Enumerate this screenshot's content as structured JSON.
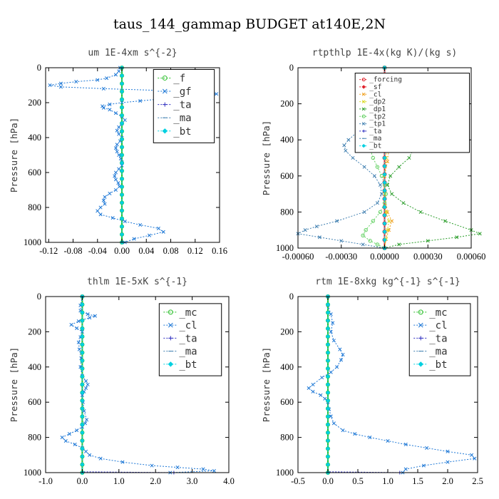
{
  "title": "taus_144_gammap  BUDGET at140E,2N",
  "colors": {
    "blue": "#1e78d6",
    "green": "#2bbf2b",
    "red": "#e0202a",
    "orange": "#f0a020",
    "yellow": "#d8d820",
    "purple": "#3030c0",
    "cyan": "#00d0e0",
    "dgreen": "#2a9d2a",
    "lgreen": "#60d060",
    "steel": "#3f7fb0"
  },
  "chart_data": [
    {
      "type": "line",
      "title": "um  1E-4xm s^{-2}",
      "ylabel": "Pressure [hPa]",
      "xlim": [
        -0.125,
        0.16
      ],
      "ylim": [
        1000,
        0
      ],
      "xticks": [
        -0.12,
        -0.08,
        -0.04,
        0.0,
        0.04,
        0.08,
        0.12,
        0.16
      ],
      "xtick_labels": [
        "-0.12",
        "-0.08",
        "-0.04",
        "0.00",
        "0.04",
        "0.08",
        "0.12",
        "0.16"
      ],
      "yticks": [
        0,
        200,
        400,
        600,
        800,
        1000
      ],
      "ytick_labels": [
        "0",
        "200",
        "400",
        "600",
        "800",
        "1000"
      ],
      "legend_position": "top-right",
      "legend_style": "big",
      "legend_box": [
        0.62,
        0.99,
        0.97,
        0.57
      ],
      "series": [
        {
          "name": "_f",
          "color": "#2bbf2b",
          "width": 2,
          "marker": "circle",
          "y": [
            0,
            1000
          ],
          "x": [
            0.0,
            0.0
          ]
        },
        {
          "name": "_gf",
          "color": "#1e78d6",
          "width": 1,
          "marker": "x",
          "y": [
            0,
            20,
            40,
            60,
            70,
            80,
            90,
            100,
            110,
            120,
            130,
            140,
            150,
            160,
            170,
            180,
            190,
            200,
            210,
            220,
            230,
            240,
            260,
            280,
            300,
            320,
            340,
            360,
            380,
            400,
            420,
            440,
            460,
            480,
            500,
            520,
            540,
            560,
            580,
            600,
            620,
            640,
            660,
            680,
            700,
            720,
            740,
            760,
            780,
            800,
            820,
            840,
            860,
            880,
            900,
            920,
            940,
            960,
            980,
            1000
          ],
          "x": [
            -0.003,
            -0.005,
            -0.01,
            -0.025,
            -0.04,
            -0.075,
            -0.1,
            -0.118,
            -0.1,
            -0.03,
            0.06,
            0.12,
            0.155,
            0.14,
            0.1,
            0.06,
            0.03,
            0.0,
            -0.02,
            -0.032,
            -0.03,
            -0.02,
            -0.01,
            0.0,
            0.005,
            0.0,
            -0.005,
            -0.008,
            -0.005,
            0.0,
            -0.003,
            -0.008,
            -0.01,
            -0.008,
            -0.005,
            -0.002,
            0.0,
            0.0,
            -0.005,
            -0.01,
            -0.012,
            -0.01,
            -0.006,
            -0.004,
            -0.01,
            -0.02,
            -0.028,
            -0.03,
            -0.028,
            -0.035,
            -0.04,
            -0.035,
            -0.015,
            0.005,
            0.03,
            0.06,
            0.068,
            0.045,
            0.02,
            0.005
          ]
        },
        {
          "name": "_ta",
          "color": "#3030c0",
          "width": 1,
          "marker": "plus",
          "y": [
            0,
            1000
          ],
          "x": [
            0.0,
            0.0
          ]
        },
        {
          "name": "_ma",
          "color": "#3f7fb0",
          "width": 1,
          "marker": "dash",
          "y": [
            0,
            1000
          ],
          "x": [
            0.0,
            0.0
          ]
        },
        {
          "name": "_bt",
          "color": "#00d0e0",
          "width": 1,
          "marker": "diamond",
          "y": [
            0,
            1000
          ],
          "x": [
            0.0,
            0.0
          ]
        }
      ]
    },
    {
      "type": "line",
      "title": "rtpthlp  1E-4x(kg K)/(kg s)",
      "ylabel": "Pressure [hPa]",
      "xlim": [
        -0.0006,
        0.0006
      ],
      "ylim": [
        1000,
        0
      ],
      "xticks": [
        -0.0006,
        -0.0003,
        0.0,
        0.0003,
        0.0006
      ],
      "xtick_labels": [
        "-0.00060",
        "-0.00030",
        "0.00000",
        "0.00030",
        "0.00060"
      ],
      "yticks": [
        0,
        200,
        400,
        600,
        800,
        1000
      ],
      "ytick_labels": [
        "0",
        "200",
        "400",
        "600",
        "800",
        "1000"
      ],
      "legend_position": "top-right",
      "legend_style": "small",
      "legend_box": [
        0.33,
        0.97,
        0.99,
        0.53
      ],
      "series": [
        {
          "name": "_forcing",
          "color": "#e0202a",
          "width": 2,
          "marker": "circle",
          "y": [
            0,
            1000
          ],
          "x": [
            0.0,
            0.0
          ]
        },
        {
          "name": "_sf",
          "color": "#e0202a",
          "width": 1,
          "marker": "diamond",
          "y": [
            0,
            1000
          ],
          "x": [
            0.0,
            0.0
          ]
        },
        {
          "name": "_cl",
          "color": "#f0a020",
          "width": 1,
          "marker": "x",
          "y": [
            0,
            200,
            300,
            380,
            450,
            520,
            600,
            700,
            800,
            850,
            900,
            950,
            1000
          ],
          "x": [
            0.0,
            0.0,
            1e-05,
            2e-05,
            3e-05,
            2e-05,
            0.0,
            0.0,
            2e-05,
            5e-05,
            3e-05,
            1e-05,
            0.0
          ]
        },
        {
          "name": "_dp2",
          "color": "#d8d820",
          "width": 1,
          "marker": "x",
          "y": [
            0,
            200,
            300,
            400,
            500,
            600,
            700,
            800,
            850,
            900,
            950,
            1000
          ],
          "x": [
            0.0,
            0.0,
            1e-05,
            2e-05,
            1e-05,
            0.0,
            0.0,
            1e-05,
            3e-05,
            2e-05,
            1e-05,
            0.0
          ]
        },
        {
          "name": "_dp1",
          "color": "#2a9d2a",
          "width": 1,
          "marker": "x",
          "y": [
            0,
            200,
            250,
            300,
            350,
            400,
            450,
            500,
            550,
            600,
            650,
            700,
            750,
            800,
            850,
            900,
            920,
            940,
            960,
            980,
            1000
          ],
          "x": [
            0.0,
            0.0,
            3e-05,
            8e-05,
            0.00014,
            0.00019,
            0.0002,
            0.00017,
            0.0001,
            4e-05,
            2e-05,
            5e-05,
            0.00013,
            0.00025,
            0.00042,
            0.0006,
            0.00066,
            0.0005,
            0.0003,
            0.0001,
            0.0
          ]
        },
        {
          "name": "_tp2",
          "color": "#60d060",
          "width": 1,
          "marker": "circle",
          "y": [
            0,
            200,
            250,
            300,
            350,
            400,
            450,
            500,
            550,
            600,
            650,
            700,
            750,
            800,
            850,
            900,
            930,
            960,
            980,
            1000
          ],
          "x": [
            0.0,
            0.0,
            -2e-05,
            -5e-05,
            -8e-05,
            -0.0001,
            -0.0001,
            -8e-05,
            -5e-05,
            -2e-05,
            0.0,
            1e-05,
            0.0,
            -3e-05,
            -8e-05,
            -0.00013,
            -0.00015,
            -0.0001,
            -5e-05,
            0.0
          ]
        },
        {
          "name": "_tp1",
          "color": "#3f7fb0",
          "width": 1,
          "marker": "x",
          "y": [
            0,
            200,
            250,
            300,
            350,
            400,
            430,
            460,
            500,
            550,
            600,
            650,
            700,
            750,
            800,
            850,
            880,
            900,
            920,
            940,
            960,
            980,
            1000
          ],
          "x": [
            0.0,
            0.0,
            -4e-05,
            -0.0001,
            -0.00018,
            -0.00025,
            -0.00028,
            -0.00027,
            -0.00022,
            -0.00014,
            -7e-05,
            -3e-05,
            -2e-05,
            -5e-05,
            -0.00014,
            -0.00033,
            -0.00047,
            -0.00055,
            -0.0006,
            -0.00045,
            -0.0003,
            -0.00015,
            0.0
          ]
        },
        {
          "name": "_ta",
          "color": "#3030c0",
          "width": 1,
          "marker": "plus",
          "y": [
            0,
            1000
          ],
          "x": [
            0.0,
            0.0
          ]
        },
        {
          "name": "_ma",
          "color": "#3f7fb0",
          "width": 1,
          "marker": "dash",
          "y": [
            0,
            1000
          ],
          "x": [
            0.0,
            0.0
          ]
        },
        {
          "name": "_bt",
          "color": "#00d0e0",
          "width": 1,
          "marker": "diamond",
          "y": [
            0,
            1000
          ],
          "x": [
            0.0,
            0.0
          ]
        }
      ]
    },
    {
      "type": "line",
      "title": "thlm  1E-5xK s^{-1}",
      "ylabel": "Pressure [hPa]",
      "xlim": [
        -1.0,
        4.0
      ],
      "ylim": [
        1000,
        0
      ],
      "xticks": [
        -1.0,
        0.0,
        1.0,
        2.0,
        3.0,
        4.0
      ],
      "xtick_labels": [
        "-1.0",
        "0.0",
        "1.0",
        "2.0",
        "3.0",
        "4.0"
      ],
      "yticks": [
        0,
        200,
        400,
        600,
        800,
        1000
      ],
      "ytick_labels": [
        "0",
        "200",
        "400",
        "600",
        "800",
        "1000"
      ],
      "legend_position": "top-right",
      "legend_style": "big",
      "legend_box": [
        0.62,
        0.96,
        0.96,
        0.55
      ],
      "series": [
        {
          "name": "_mc",
          "color": "#2bbf2b",
          "width": 2,
          "marker": "circle",
          "y": [
            0,
            1000
          ],
          "x": [
            0.0,
            0.0
          ]
        },
        {
          "name": "_cl",
          "color": "#1e78d6",
          "width": 1,
          "marker": "x",
          "y": [
            0,
            50,
            80,
            100,
            110,
            120,
            140,
            160,
            180,
            200,
            230,
            260,
            300,
            350,
            400,
            450,
            480,
            500,
            520,
            540,
            560,
            600,
            650,
            700,
            720,
            740,
            760,
            780,
            800,
            820,
            840,
            860,
            880,
            900,
            920,
            940,
            960,
            970,
            980,
            990,
            1000
          ],
          "x": [
            0.0,
            -0.05,
            -0.05,
            0.15,
            0.35,
            0.2,
            -0.1,
            -0.3,
            -0.15,
            0.0,
            -0.05,
            -0.1,
            -0.08,
            -0.03,
            -0.05,
            0.0,
            0.1,
            0.15,
            0.1,
            0.05,
            0.0,
            0.02,
            0.05,
            0.12,
            0.08,
            0.0,
            -0.15,
            -0.35,
            -0.55,
            -0.45,
            -0.2,
            0.0,
            0.1,
            0.2,
            0.5,
            1.1,
            1.9,
            2.6,
            3.3,
            3.6,
            2.4
          ]
        },
        {
          "name": "_ta",
          "color": "#3030c0",
          "width": 1,
          "marker": "plus",
          "y": [
            0,
            995,
            1000
          ],
          "x": [
            0.0,
            0.0,
            2.5
          ]
        },
        {
          "name": "_ma",
          "color": "#3f7fb0",
          "width": 1,
          "marker": "dash",
          "y": [
            0,
            1000
          ],
          "x": [
            0.0,
            0.0
          ]
        },
        {
          "name": "_bt",
          "color": "#00d0e0",
          "width": 1,
          "marker": "diamond",
          "y": [
            0,
            1000
          ],
          "x": [
            0.0,
            0.0
          ]
        }
      ]
    },
    {
      "type": "line",
      "title": "rtm  1E-8xkg kg^{-1} s^{-1}",
      "ylabel": "Pressure [hPa]",
      "xlim": [
        -0.5,
        2.5
      ],
      "ylim": [
        1000,
        0
      ],
      "xticks": [
        -0.5,
        0.0,
        0.5,
        1.0,
        1.5,
        2.0,
        2.5
      ],
      "xtick_labels": [
        "-0.5",
        "0.0",
        "0.5",
        "1.0",
        "1.5",
        "2.0",
        "2.5"
      ],
      "yticks": [
        0,
        200,
        400,
        600,
        800,
        1000
      ],
      "ytick_labels": [
        "0",
        "200",
        "400",
        "600",
        "800",
        "1000"
      ],
      "legend_position": "top-right",
      "legend_style": "big",
      "legend_box": [
        0.62,
        0.96,
        0.96,
        0.55
      ],
      "series": [
        {
          "name": "_mc",
          "color": "#2bbf2b",
          "width": 2,
          "marker": "circle",
          "y": [
            0,
            1000
          ],
          "x": [
            0.0,
            0.0
          ]
        },
        {
          "name": "_cl",
          "color": "#1e78d6",
          "width": 1,
          "marker": "x",
          "y": [
            0,
            50,
            100,
            150,
            200,
            250,
            300,
            330,
            360,
            400,
            430,
            460,
            500,
            520,
            540,
            560,
            580,
            600,
            640,
            680,
            720,
            760,
            780,
            800,
            820,
            840,
            860,
            880,
            900,
            920,
            940,
            960,
            980,
            1000
          ],
          "x": [
            0.0,
            0.0,
            0.05,
            0.08,
            0.05,
            0.1,
            0.2,
            0.25,
            0.22,
            0.15,
            0.05,
            -0.1,
            -0.25,
            -0.32,
            -0.25,
            -0.12,
            -0.05,
            0.0,
            0.02,
            0.05,
            0.1,
            0.25,
            0.45,
            0.7,
            1.0,
            1.3,
            1.65,
            2.0,
            2.4,
            2.45,
            2.0,
            1.6,
            1.3,
            1.25
          ]
        },
        {
          "name": "_ta",
          "color": "#3030c0",
          "width": 1,
          "marker": "plus",
          "y": [
            0,
            995,
            1000
          ],
          "x": [
            0.0,
            0.0,
            1.2
          ]
        },
        {
          "name": "_ma",
          "color": "#3f7fb0",
          "width": 1,
          "marker": "dash",
          "y": [
            0,
            1000
          ],
          "x": [
            0.0,
            0.0
          ]
        },
        {
          "name": "_bt",
          "color": "#00d0e0",
          "width": 1,
          "marker": "diamond",
          "y": [
            0,
            1000
          ],
          "x": [
            0.0,
            0.0
          ]
        }
      ]
    }
  ]
}
